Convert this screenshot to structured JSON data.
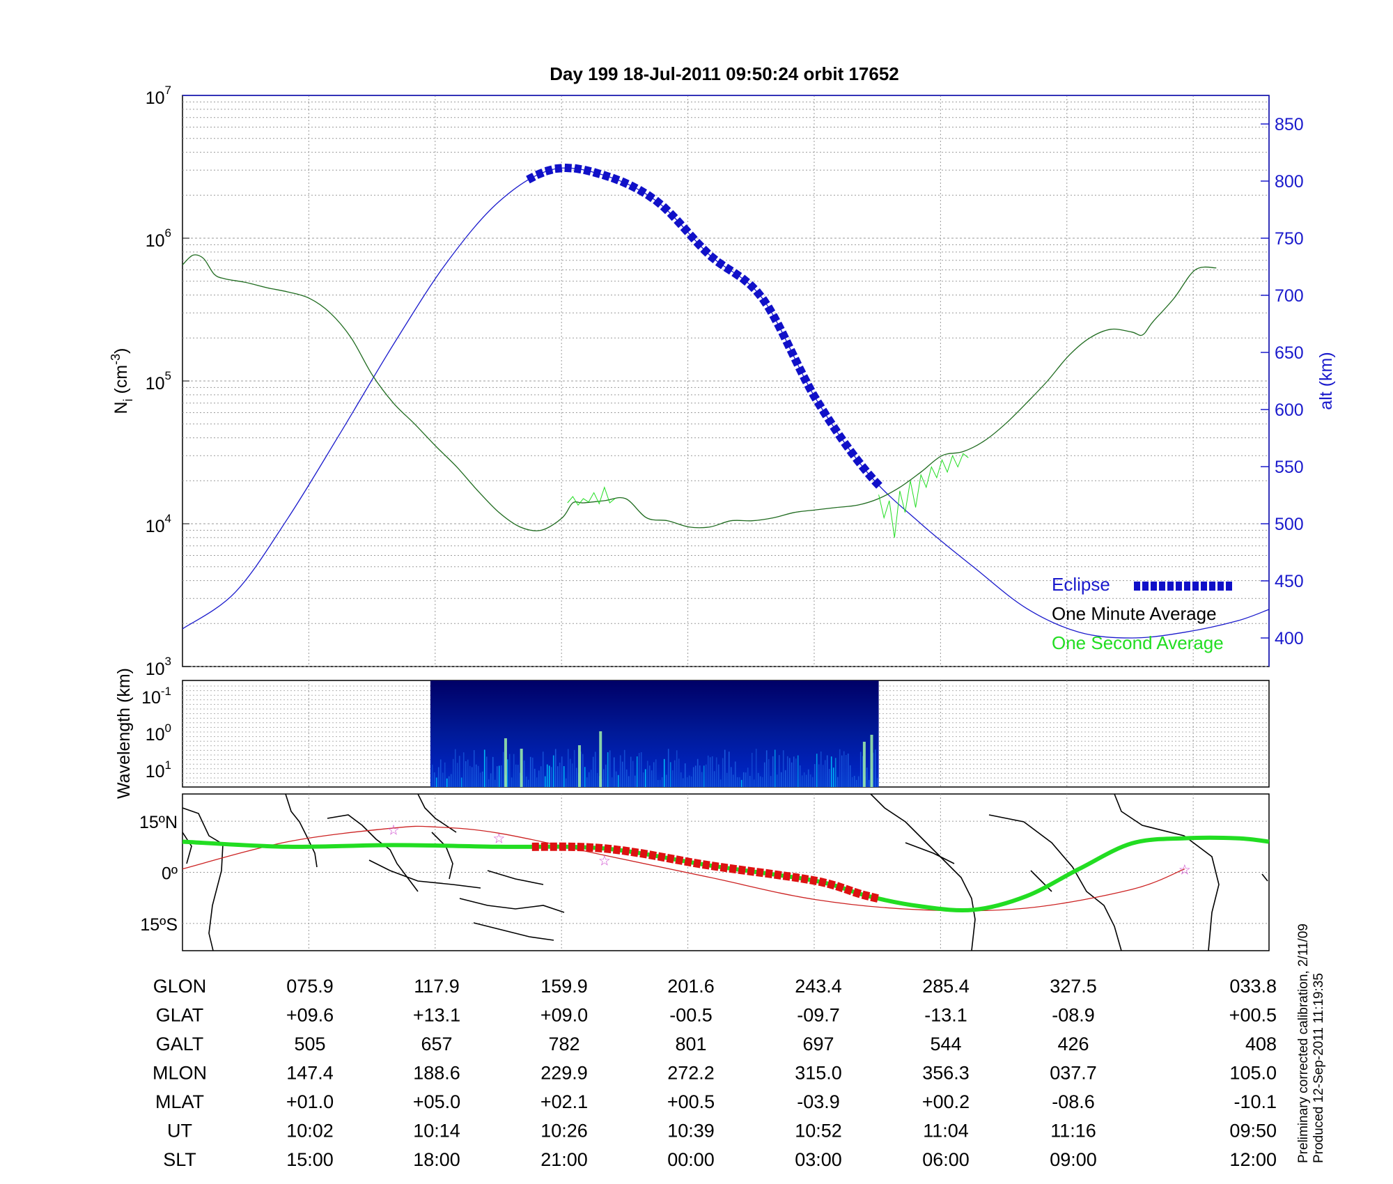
{
  "title": "Day 199  18-Jul-2011 09:50:24   orbit 17652",
  "chart_data": [
    {
      "type": "line",
      "name": "ion-density-panel",
      "ylabel_left": "N_i (cm^-3)",
      "ylabel_left_base": "N",
      "ylabel_left_sub": "i",
      "ylabel_left_unit_pre": " (cm",
      "ylabel_left_unit_exp": "-3",
      "ylabel_left_unit_post": ")",
      "ylabel_right": "alt (km)",
      "yscale_left": "log",
      "ylim_left": [
        1000,
        10000000
      ],
      "yticks_left": [
        {
          "base": "10",
          "exp": "3",
          "value": 1000
        },
        {
          "base": "10",
          "exp": "4",
          "value": 10000
        },
        {
          "base": "10",
          "exp": "5",
          "value": 100000
        },
        {
          "base": "10",
          "exp": "6",
          "value": 1000000
        },
        {
          "base": "10",
          "exp": "7",
          "value": 10000000
        }
      ],
      "ylim_right": [
        375,
        875
      ],
      "yticks_right": [
        400,
        450,
        500,
        550,
        600,
        650,
        700,
        750,
        800,
        850
      ],
      "x_unit": "UT minutes after 09:50",
      "xlim": [
        0,
        103
      ],
      "grid": true,
      "legend_placement": "bottom-right",
      "legend": [
        {
          "label": "Eclipse",
          "color": "#1010c8"
        },
        {
          "label": "One Minute Average",
          "color": "#000000"
        },
        {
          "label": "One Second Average",
          "color": "#22dd22"
        }
      ],
      "series": [
        {
          "name": "One Minute Average",
          "color": "#1f6b1f",
          "x": [
            0,
            1,
            2,
            3,
            4,
            6,
            8,
            10,
            12,
            14,
            16,
            18,
            20,
            22,
            24,
            26,
            28,
            30,
            32,
            34,
            36,
            37,
            38,
            40,
            42,
            44,
            46,
            48,
            50,
            52,
            54,
            56,
            58,
            60,
            62,
            64,
            66,
            68,
            70,
            72,
            74,
            76,
            78,
            80,
            82,
            84,
            86,
            88,
            90,
            91,
            92,
            94,
            96,
            98,
            100,
            102,
            103
          ],
          "y": [
            650000,
            760000,
            720000,
            560000,
            520000,
            490000,
            450000,
            420000,
            380000,
            300000,
            200000,
            110000,
            70000,
            50000,
            35000,
            25000,
            17000,
            12000,
            9500,
            9000,
            11000,
            14000,
            14000,
            14500,
            15000,
            11000,
            10500,
            9500,
            9500,
            10500,
            10500,
            11000,
            12000,
            12500,
            13000,
            13500,
            15000,
            18000,
            23000,
            30000,
            32000,
            38000,
            50000,
            70000,
            100000,
            150000,
            200000,
            230000,
            220000,
            210000,
            260000,
            380000,
            600000,
            620000,
            null,
            null,
            700000
          ]
        },
        {
          "name": "One Second Average",
          "color": "#22dd22",
          "x": [
            36.5,
            37,
            37.5,
            38,
            38.5,
            39,
            39.5,
            40,
            40.5,
            41,
            66,
            66.5,
            67,
            67.5,
            68,
            68.5,
            69,
            69.5,
            70,
            70.5,
            71,
            71.5,
            72,
            72.5,
            73,
            73.5,
            74,
            74.5
          ],
          "y": [
            14000,
            15500,
            13500,
            15000,
            14200,
            16500,
            13800,
            18000,
            14000,
            15000,
            16000,
            11000,
            14500,
            8000,
            17000,
            12000,
            20000,
            13000,
            22000,
            18000,
            25000,
            21000,
            28000,
            23000,
            30000,
            25000,
            31000,
            29000
          ]
        },
        {
          "name": "Altitude",
          "axis": "right",
          "color": "#1a1acc",
          "x": [
            0,
            5,
            10,
            15,
            20,
            25,
            30,
            35,
            40,
            45,
            50,
            55,
            60,
            65,
            70,
            75,
            80,
            85,
            90,
            95,
            100,
            103
          ],
          "y": [
            408,
            440,
            505,
            580,
            657,
            728,
            782,
            810,
            805,
            782,
            735,
            697,
            610,
            544,
            500,
            462,
            426,
            405,
            400,
            405,
            415,
            425
          ]
        },
        {
          "name": "Eclipse",
          "axis": "right",
          "color": "#1010c8",
          "x_range": [
            33,
            66
          ]
        }
      ]
    },
    {
      "type": "heatmap",
      "name": "wavelength-spectrogram",
      "ylabel": "Wavelength (km)",
      "yscale": "log",
      "yticks": [
        {
          "base": "10",
          "exp": "-1"
        },
        {
          "base": "10",
          "exp": "0"
        },
        {
          "base": "10",
          "exp": "1"
        }
      ],
      "x_range": [
        23.5,
        66
      ],
      "xlim": [
        0,
        103
      ],
      "colormap": [
        "#000066",
        "#0033cc",
        "#00ccff",
        "#aaffaa"
      ]
    },
    {
      "type": "line",
      "name": "ground-track-map",
      "yticks": [
        "15ºN",
        "0º",
        "15ºS"
      ],
      "ylim": [
        -23,
        23
      ],
      "series": [
        {
          "name": "Magnetic equator",
          "color": "#22dd22",
          "x": [
            0,
            10,
            20,
            30,
            40,
            50,
            60,
            65,
            70,
            75,
            80,
            85,
            90,
            95,
            100,
            103
          ],
          "y": [
            9,
            7.5,
            8,
            7.5,
            7,
            2,
            -2.5,
            -7,
            -10,
            -11,
            -7,
            1,
            8.5,
            10,
            10,
            9
          ]
        },
        {
          "name": "Orbit track",
          "color": "#cc2222",
          "x": [
            0,
            10,
            20,
            24,
            30,
            40,
            50,
            60,
            70,
            80,
            90,
            95
          ],
          "y": [
            1,
            9,
            13,
            13.3,
            11.5,
            5,
            -1.5,
            -8,
            -11,
            -10.5,
            -5,
            1
          ]
        },
        {
          "name": "Eclipse track",
          "color": "#dd1111",
          "x_range": [
            33,
            66
          ]
        }
      ]
    }
  ],
  "table": {
    "row_labels": [
      "GLON",
      "GLAT",
      "GALT",
      "MLON",
      "MLAT",
      "UT",
      "SLT"
    ],
    "columns": [
      [
        "075.9",
        "+09.6",
        "505",
        "147.4",
        "+01.0",
        "10:02",
        "15:00"
      ],
      [
        "117.9",
        "+13.1",
        "657",
        "188.6",
        "+05.0",
        "10:14",
        "18:00"
      ],
      [
        "159.9",
        "+09.0",
        "782",
        "229.9",
        "+02.1",
        "10:26",
        "21:00"
      ],
      [
        "201.6",
        "-00.5",
        "801",
        "272.2",
        "+00.5",
        "10:39",
        "00:00"
      ],
      [
        "243.4",
        "-09.7",
        "697",
        "315.0",
        "-03.9",
        "10:52",
        "03:00"
      ],
      [
        "285.4",
        "-13.1",
        "544",
        "356.3",
        "+00.2",
        "11:04",
        "06:00"
      ],
      [
        "327.5",
        "-08.9",
        "426",
        "037.7",
        "-08.6",
        "11:16",
        "09:00"
      ],
      [
        "033.8",
        "+00.5",
        "408",
        "105.0",
        "-10.1",
        "09:50",
        "12:00"
      ]
    ]
  },
  "footnote": {
    "line1": "Preliminary corrected calibration, 2/11/09",
    "line2": "Produced 12-Sep-2011 11:19:35"
  },
  "colors": {
    "axis_right": "#1a1acc",
    "eclipse": "#1010c8",
    "one_minute": "#1f6b1f",
    "one_second": "#22dd22",
    "track_eclipse": "#dd1111",
    "orbit_track": "#cc2222"
  }
}
